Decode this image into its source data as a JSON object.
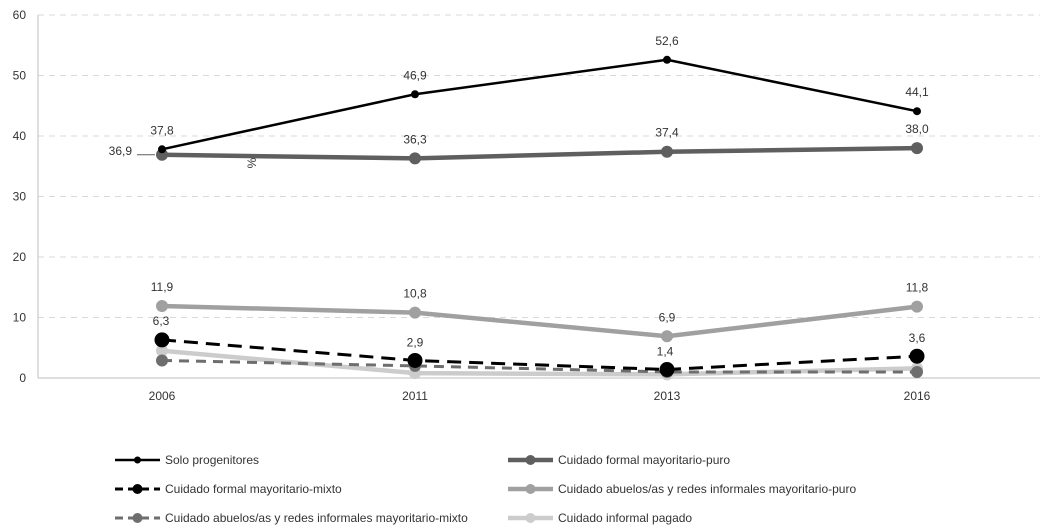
{
  "chart_data": {
    "type": "line",
    "categories": [
      "2006",
      "2011",
      "2013",
      "2016"
    ],
    "ylim": [
      0,
      60
    ],
    "y_ticks": [
      0,
      10,
      20,
      30,
      40,
      50,
      60
    ],
    "y_unit_label": "%",
    "grid": "horizontal-dashed",
    "legend_placement": "bottom",
    "series": [
      {
        "name": "Solo progenitores",
        "values": [
          37.8,
          46.9,
          52.6,
          44.1
        ],
        "labels": [
          "37,8",
          "46,9",
          "52,6",
          "44,1"
        ],
        "color": "#000000",
        "dash": false,
        "marker": "small"
      },
      {
        "name": "Cuidado formal mayoritario-puro",
        "values": [
          36.9,
          36.3,
          37.4,
          38.0
        ],
        "labels": [
          "36,9",
          "36,3",
          "37,4",
          "38,0"
        ],
        "color": "#5f5f5f",
        "dash": false,
        "marker": "medium"
      },
      {
        "name": "Cuidado formal mayoritario-mixto",
        "values": [
          6.3,
          2.9,
          1.4,
          3.6
        ],
        "labels": [
          "6,3",
          "2,9",
          "1,4",
          "3,6"
        ],
        "color": "#000000",
        "dash": true,
        "marker": "large"
      },
      {
        "name": "Cuidado abuelos/as y redes informales mayoritario-puro",
        "values": [
          11.9,
          10.8,
          6.9,
          11.8
        ],
        "labels": [
          "11,9",
          "10,8",
          "6,9",
          "11,8"
        ],
        "color": "#a0a0a0",
        "dash": false,
        "marker": "medium"
      },
      {
        "name": "Cuidado abuelos/as y redes informales mayoritario-mixto",
        "values": [
          2.9,
          2.0,
          1.0,
          1.0
        ],
        "labels": [],
        "color": "#6e6e6e",
        "dash": true,
        "marker": "medium"
      },
      {
        "name": "Cuidado informal pagado",
        "values": [
          4.5,
          0.8,
          0.6,
          1.6
        ],
        "labels": [],
        "color": "#cccccc",
        "dash": false,
        "marker": "medium"
      }
    ]
  }
}
